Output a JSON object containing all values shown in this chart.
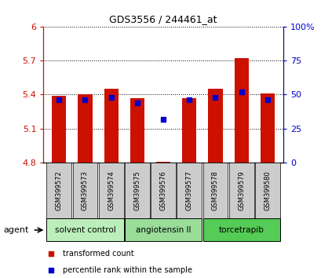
{
  "title": "GDS3556 / 244461_at",
  "samples": [
    "GSM399572",
    "GSM399573",
    "GSM399574",
    "GSM399575",
    "GSM399576",
    "GSM399577",
    "GSM399578",
    "GSM399579",
    "GSM399580"
  ],
  "transformed_counts": [
    5.39,
    5.4,
    5.45,
    5.37,
    4.81,
    5.37,
    5.45,
    5.72,
    5.41
  ],
  "percentile_ranks": [
    46,
    46,
    48,
    44,
    32,
    46,
    48,
    52,
    46
  ],
  "ylim_left": [
    4.8,
    6.0
  ],
  "ylim_right": [
    0,
    100
  ],
  "yticks_left": [
    4.8,
    5.1,
    5.4,
    5.7,
    6.0
  ],
  "ytick_labels_left": [
    "4.8",
    "5.1",
    "5.4",
    "5.7",
    "6"
  ],
  "yticks_right": [
    0,
    25,
    50,
    75,
    100
  ],
  "ytick_labels_right": [
    "0",
    "25",
    "50",
    "75",
    "100%"
  ],
  "bar_bottom": 4.8,
  "bar_color": "#cc1100",
  "dot_color": "#0000cc",
  "groups": [
    {
      "label": "solvent control",
      "indices": [
        0,
        1,
        2
      ],
      "color": "#bbeebb"
    },
    {
      "label": "angiotensin II",
      "indices": [
        3,
        4,
        5
      ],
      "color": "#99dd99"
    },
    {
      "label": "torcetrapib",
      "indices": [
        6,
        7,
        8
      ],
      "color": "#55cc55"
    }
  ],
  "agent_label": "agent",
  "legend_items": [
    {
      "label": "transformed count",
      "color": "#cc1100"
    },
    {
      "label": "percentile rank within the sample",
      "color": "#0000cc"
    }
  ],
  "background_color": "#ffffff",
  "plot_bg_color": "#ffffff",
  "label_area_color": "#cccccc"
}
